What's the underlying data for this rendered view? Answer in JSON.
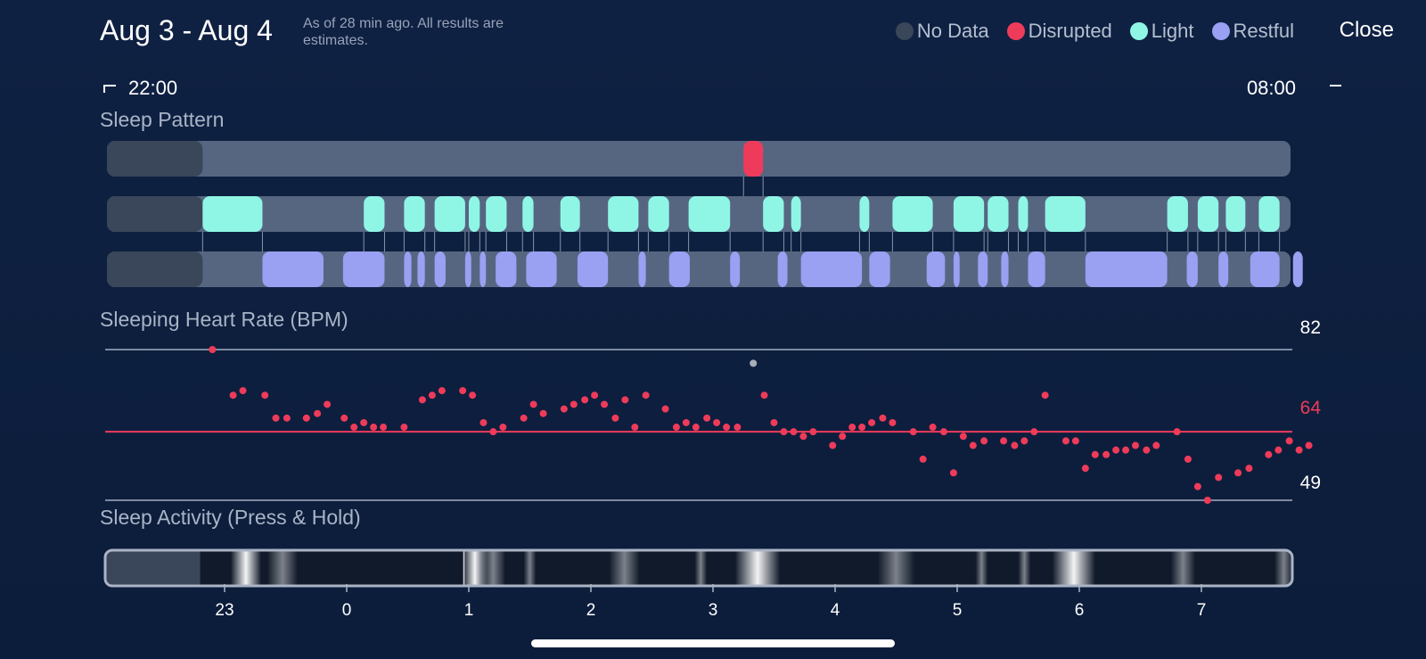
{
  "header": {
    "title": "Aug 3 - Aug 4",
    "subtitle": "As of 28 min ago. All results are estimates.",
    "close_label": "Close"
  },
  "legend": [
    {
      "label": "No Data",
      "color": "#3a4659"
    },
    {
      "label": "Disrupted",
      "color": "#ef3b5a"
    },
    {
      "label": "Light",
      "color": "#8ff6e6"
    },
    {
      "label": "Restful",
      "color": "#9aa0f2"
    }
  ],
  "time_range": {
    "start": "22:00",
    "end": "08:00"
  },
  "sections": {
    "sleep_pattern": "Sleep Pattern",
    "heart_rate": "Sleeping Heart Rate (BPM)",
    "activity": "Sleep Activity (Press & Hold)"
  },
  "sleep_pattern": {
    "no_data_until_hour": 22.82,
    "disrupted": [
      [
        3.25,
        3.41
      ]
    ],
    "light": [
      [
        22.82,
        23.31
      ],
      [
        0.14,
        0.31
      ],
      [
        0.47,
        0.64
      ],
      [
        0.72,
        0.97
      ],
      [
        1.0,
        1.09
      ],
      [
        1.14,
        1.31
      ],
      [
        1.44,
        1.53
      ],
      [
        1.75,
        1.91
      ],
      [
        2.14,
        2.39
      ],
      [
        2.47,
        2.64
      ],
      [
        2.8,
        3.14
      ],
      [
        3.41,
        3.58
      ],
      [
        3.64,
        3.72
      ],
      [
        4.2,
        4.28
      ],
      [
        4.47,
        4.8
      ],
      [
        4.97,
        5.22
      ],
      [
        5.25,
        5.42
      ],
      [
        5.5,
        5.58
      ],
      [
        5.72,
        6.05
      ],
      [
        6.72,
        6.89
      ],
      [
        6.97,
        7.14
      ],
      [
        7.2,
        7.36
      ],
      [
        7.47,
        7.64
      ]
    ],
    "restful": [
      [
        23.31,
        23.81
      ],
      [
        23.97,
        24.31
      ],
      [
        0.47,
        0.53
      ],
      [
        0.58,
        0.64
      ],
      [
        0.72,
        0.81
      ],
      [
        0.97,
        1.02
      ],
      [
        1.09,
        1.14
      ],
      [
        1.22,
        1.39
      ],
      [
        1.47,
        1.72
      ],
      [
        1.89,
        2.14
      ],
      [
        2.39,
        2.45
      ],
      [
        2.64,
        2.81
      ],
      [
        3.14,
        3.22
      ],
      [
        3.53,
        3.61
      ],
      [
        3.72,
        4.22
      ],
      [
        4.28,
        4.45
      ],
      [
        4.75,
        4.9
      ],
      [
        4.97,
        5.02
      ],
      [
        5.17,
        5.25
      ],
      [
        5.36,
        5.42
      ],
      [
        5.58,
        5.72
      ],
      [
        6.05,
        6.72
      ],
      [
        6.88,
        6.97
      ],
      [
        7.14,
        7.22
      ],
      [
        7.4,
        7.64
      ],
      [
        7.75,
        7.83
      ]
    ]
  },
  "chart_data": {
    "type": "scatter",
    "title": "Sleeping Heart Rate (BPM)",
    "ylim": [
      49,
      82
    ],
    "reference_lines": [
      82,
      64,
      49
    ],
    "average": 64,
    "x_ticks": [
      "23",
      "0",
      "1",
      "2",
      "3",
      "4",
      "5",
      "6",
      "7"
    ],
    "x_range_hours": [
      22.0,
      31.83
    ],
    "points": [
      [
        22.9,
        82
      ],
      [
        23.07,
        72
      ],
      [
        23.15,
        73
      ],
      [
        23.33,
        72
      ],
      [
        23.42,
        67
      ],
      [
        23.51,
        67
      ],
      [
        23.67,
        67
      ],
      [
        23.76,
        68
      ],
      [
        23.84,
        70
      ],
      [
        23.98,
        67
      ],
      [
        24.06,
        65
      ],
      [
        24.14,
        66
      ],
      [
        24.22,
        65
      ],
      [
        24.3,
        65
      ],
      [
        24.47,
        65
      ],
      [
        0.62,
        71
      ],
      [
        0.7,
        72
      ],
      [
        0.78,
        73
      ],
      [
        0.95,
        73
      ],
      [
        1.03,
        72
      ],
      [
        1.12,
        66
      ],
      [
        1.2,
        64
      ],
      [
        1.28,
        65
      ],
      [
        1.45,
        67
      ],
      [
        1.53,
        70
      ],
      [
        1.61,
        68
      ],
      [
        1.78,
        69
      ],
      [
        1.86,
        70
      ],
      [
        1.95,
        71
      ],
      [
        2.03,
        72
      ],
      [
        2.11,
        70
      ],
      [
        2.2,
        67
      ],
      [
        2.28,
        71
      ],
      [
        2.36,
        65
      ],
      [
        2.45,
        72
      ],
      [
        2.61,
        69
      ],
      [
        2.7,
        65
      ],
      [
        2.78,
        66
      ],
      [
        2.86,
        65
      ],
      [
        2.95,
        67
      ],
      [
        3.03,
        66
      ],
      [
        3.11,
        65
      ],
      [
        3.2,
        65
      ],
      [
        3.33,
        79
      ],
      [
        3.42,
        72
      ],
      [
        3.5,
        66
      ],
      [
        3.58,
        64
      ],
      [
        3.66,
        64
      ],
      [
        3.74,
        63
      ],
      [
        3.82,
        64
      ],
      [
        3.98,
        61
      ],
      [
        4.06,
        63
      ],
      [
        4.14,
        65
      ],
      [
        4.22,
        65
      ],
      [
        4.3,
        66
      ],
      [
        4.39,
        67
      ],
      [
        4.47,
        66
      ],
      [
        4.64,
        64
      ],
      [
        4.72,
        58
      ],
      [
        4.8,
        65
      ],
      [
        4.89,
        64
      ],
      [
        4.97,
        55
      ],
      [
        5.05,
        63
      ],
      [
        5.13,
        61
      ],
      [
        5.22,
        62
      ],
      [
        5.38,
        62
      ],
      [
        5.47,
        61
      ],
      [
        5.55,
        62
      ],
      [
        5.63,
        64
      ],
      [
        5.72,
        72
      ],
      [
        5.89,
        62
      ],
      [
        5.97,
        62
      ],
      [
        6.05,
        56
      ],
      [
        6.13,
        59
      ],
      [
        6.22,
        59
      ],
      [
        6.3,
        60
      ],
      [
        6.38,
        60
      ],
      [
        6.46,
        61
      ],
      [
        6.55,
        60
      ],
      [
        6.63,
        61
      ],
      [
        6.8,
        64
      ],
      [
        6.89,
        58
      ],
      [
        6.97,
        52
      ],
      [
        7.05,
        49
      ],
      [
        7.14,
        54
      ],
      [
        7.3,
        55
      ],
      [
        7.39,
        56
      ],
      [
        7.55,
        59
      ],
      [
        7.63,
        60
      ],
      [
        7.72,
        62
      ],
      [
        7.8,
        60
      ],
      [
        7.88,
        61
      ]
    ],
    "outlier_point": [
      3.33,
      79
    ],
    "y_labels": [
      "82",
      "64",
      "49"
    ]
  },
  "sleep_activity": {
    "bright_bands": [
      [
        23.05,
        23.3
      ],
      [
        0.95,
        1.15
      ],
      [
        3.18,
        3.55
      ],
      [
        5.78,
        6.13
      ],
      [
        0.95,
        0.97
      ]
    ],
    "medium_bands": [
      [
        23.35,
        23.6
      ],
      [
        1.1,
        1.3
      ],
      [
        1.45,
        1.55
      ],
      [
        2.15,
        2.4
      ],
      [
        2.85,
        2.95
      ],
      [
        4.35,
        4.65
      ],
      [
        6.75,
        6.95
      ],
      [
        7.6,
        7.75
      ],
      [
        5.15,
        5.25
      ],
      [
        5.5,
        5.6
      ]
    ]
  }
}
